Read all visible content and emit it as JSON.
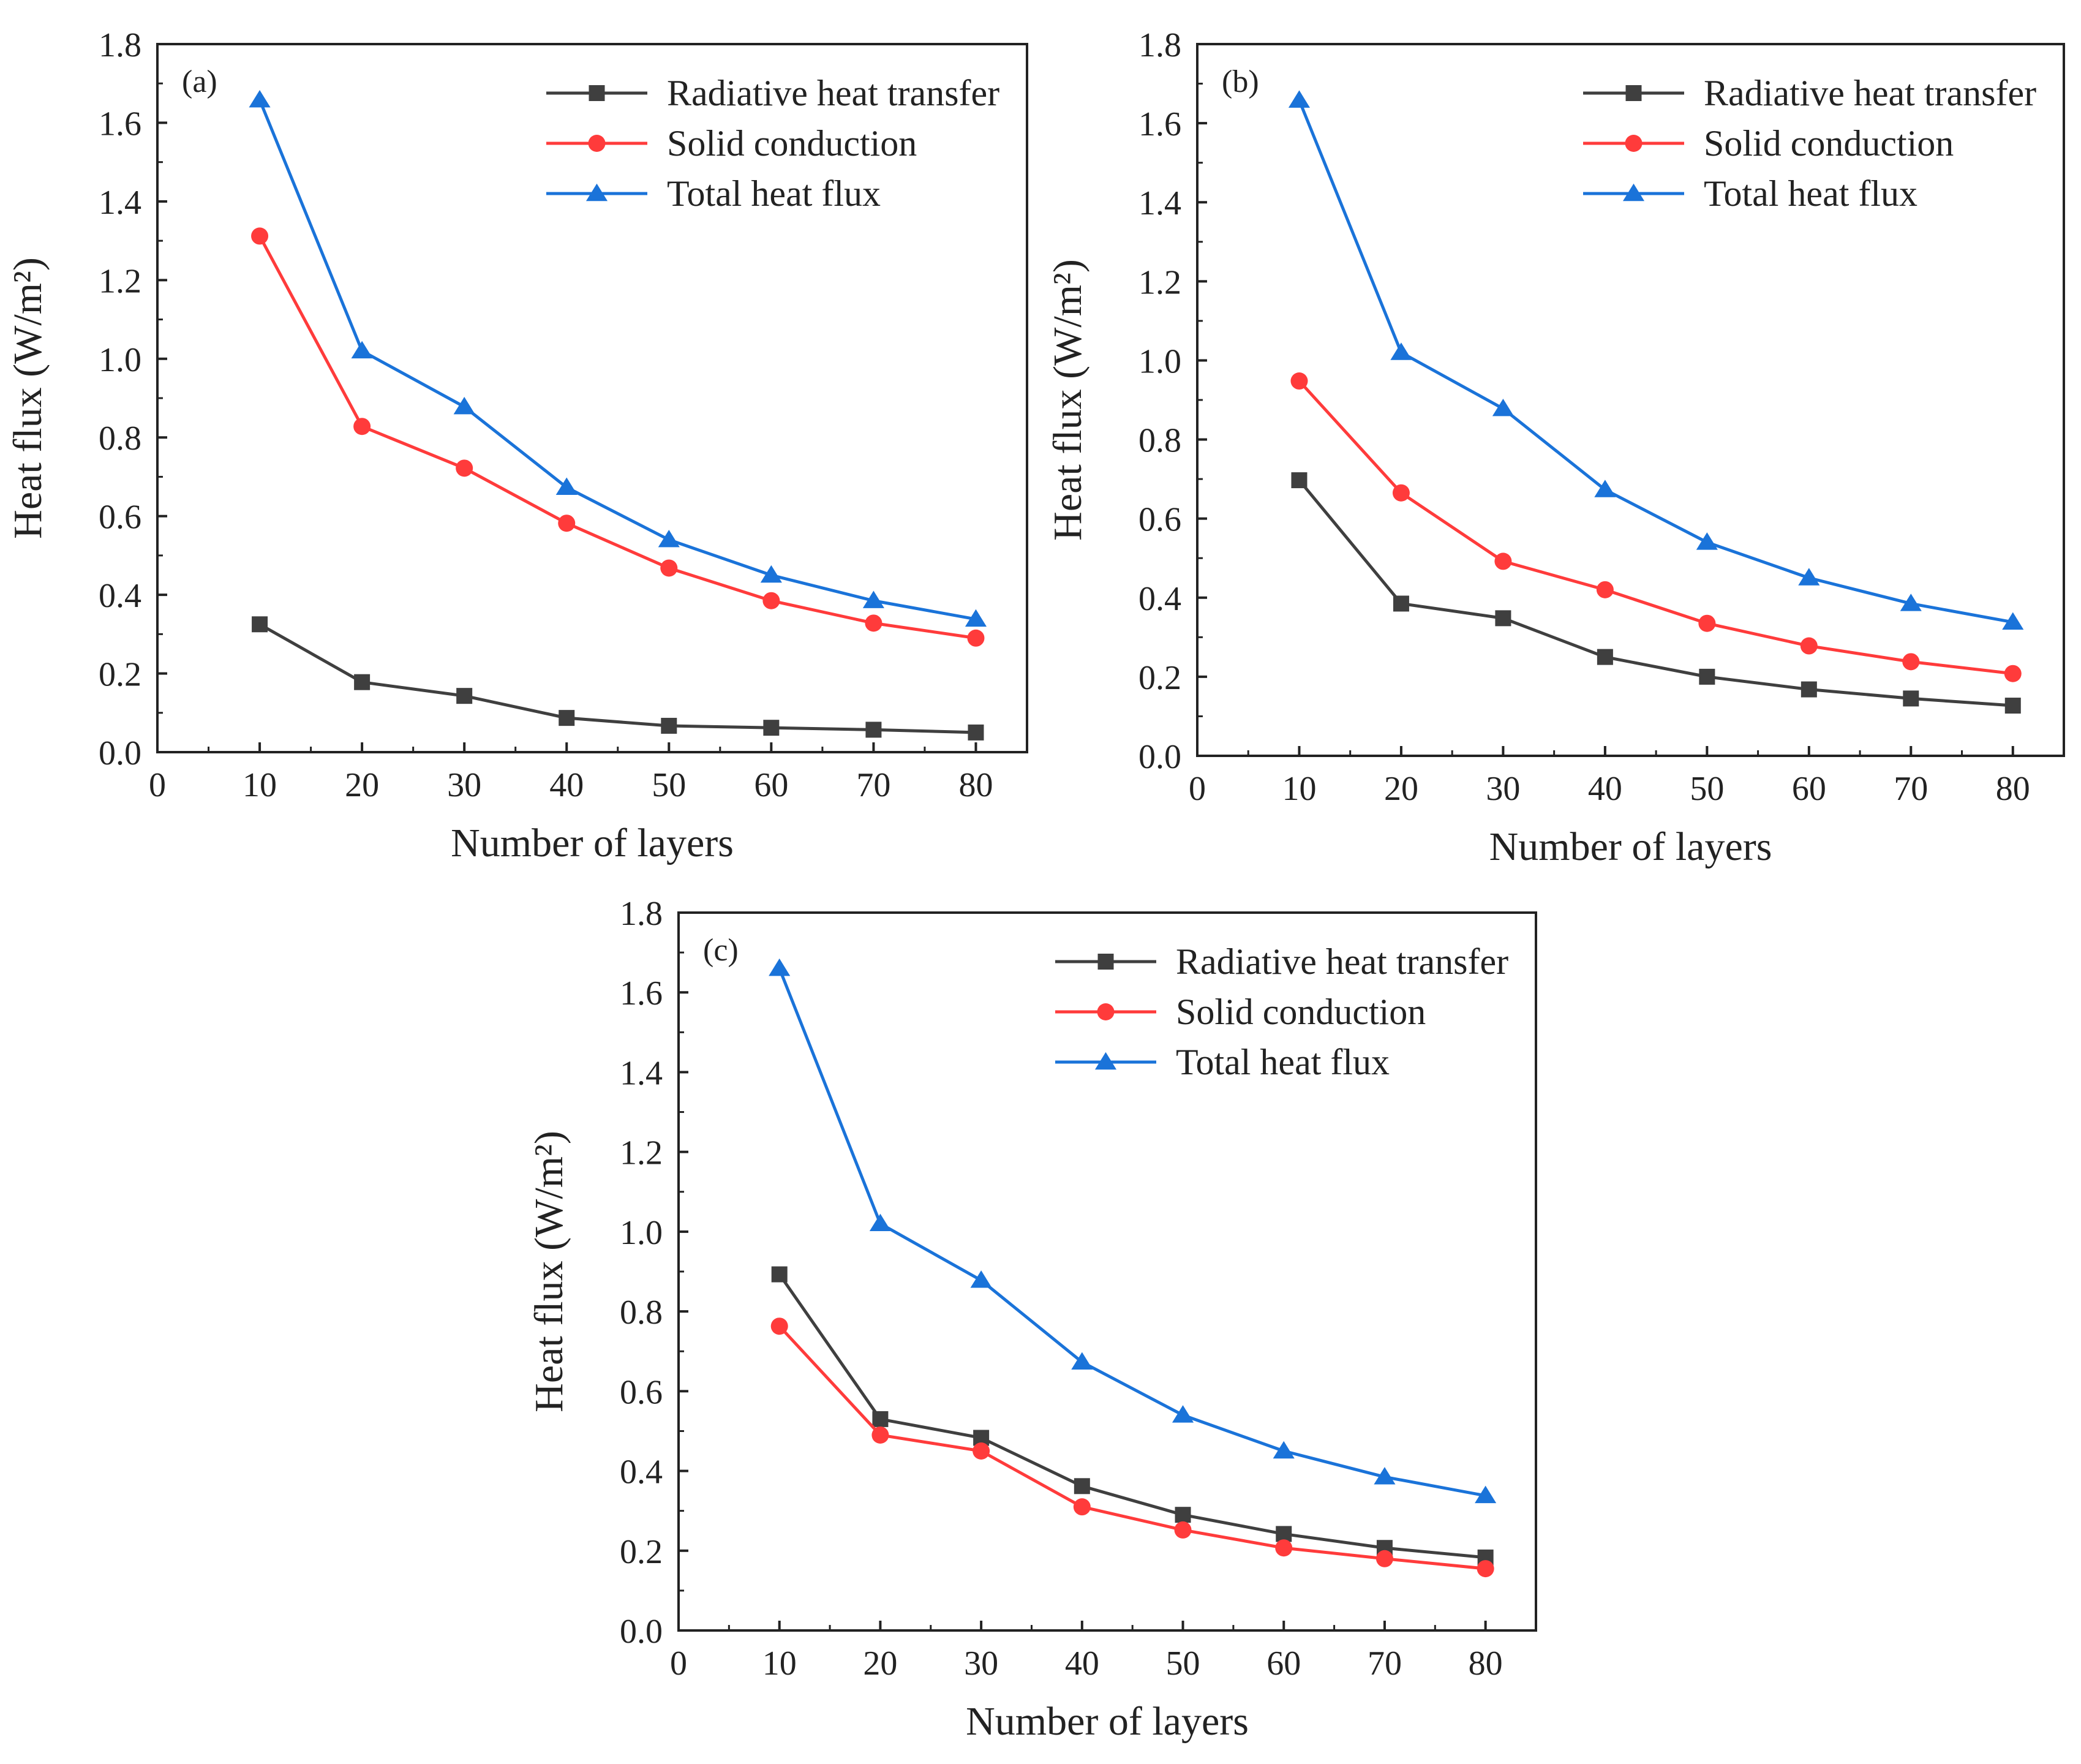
{
  "figure": {
    "panels": [
      "(a)",
      "(b)",
      "(c)"
    ]
  },
  "colors": {
    "radiative": "#3f3f3f",
    "solid": "#ff3b3b",
    "total": "#1a73d9",
    "axis": "#222222"
  },
  "chart_data": [
    {
      "type": "line",
      "panel_label": "(a)",
      "xlabel": "Number of layers",
      "ylabel": "Heat flux (W/m²)",
      "xlim": [
        0,
        85
      ],
      "ylim": [
        0,
        1.8
      ],
      "xticks": [
        0,
        10,
        20,
        30,
        40,
        50,
        60,
        70,
        80
      ],
      "yticks": [
        0.0,
        0.2,
        0.4,
        0.6,
        0.8,
        1.0,
        1.2,
        1.4,
        1.6,
        1.8
      ],
      "xtick_labels": [
        "0",
        "10",
        "20",
        "30",
        "40",
        "50",
        "60",
        "70",
        "80"
      ],
      "ytick_labels": [
        "0.0",
        "0.2",
        "0.4",
        "0.6",
        "0.8",
        "1.0",
        "1.2",
        "1.4",
        "1.6",
        "1.8"
      ],
      "grid": false,
      "legend_position": "top-right",
      "x": [
        10,
        20,
        30,
        40,
        50,
        60,
        70,
        80
      ],
      "series": [
        {
          "name": "Radiative heat transfer",
          "marker": "square",
          "color": "#3f3f3f",
          "values": [
            0.325,
            0.178,
            0.143,
            0.087,
            0.067,
            0.062,
            0.057,
            0.05
          ]
        },
        {
          "name": "Solid conduction",
          "marker": "circle",
          "color": "#ff3b3b",
          "values": [
            1.312,
            0.828,
            0.722,
            0.582,
            0.468,
            0.385,
            0.328,
            0.29
          ]
        },
        {
          "name": "Total heat flux",
          "marker": "triangle",
          "color": "#1a73d9",
          "values": [
            1.658,
            1.02,
            0.878,
            0.673,
            0.54,
            0.45,
            0.385,
            0.338
          ]
        }
      ]
    },
    {
      "type": "line",
      "panel_label": "(b)",
      "xlabel": "Number of layers",
      "ylabel": "Heat flux (W/m²)",
      "xlim": [
        0,
        85
      ],
      "ylim": [
        0,
        1.8
      ],
      "xticks": [
        0,
        10,
        20,
        30,
        40,
        50,
        60,
        70,
        80
      ],
      "yticks": [
        0.0,
        0.2,
        0.4,
        0.6,
        0.8,
        1.0,
        1.2,
        1.4,
        1.6,
        1.8
      ],
      "xtick_labels": [
        "0",
        "10",
        "20",
        "30",
        "40",
        "50",
        "60",
        "70",
        "80"
      ],
      "ytick_labels": [
        "0.0",
        "0.2",
        "0.4",
        "0.6",
        "0.8",
        "1.0",
        "1.2",
        "1.4",
        "1.6",
        "1.8"
      ],
      "grid": false,
      "legend_position": "top-right",
      "x": [
        10,
        20,
        30,
        40,
        50,
        60,
        70,
        80
      ],
      "series": [
        {
          "name": "Radiative heat transfer",
          "marker": "square",
          "color": "#3f3f3f",
          "values": [
            0.697,
            0.385,
            0.348,
            0.25,
            0.2,
            0.168,
            0.145,
            0.127
          ]
        },
        {
          "name": "Solid conduction",
          "marker": "circle",
          "color": "#ff3b3b",
          "values": [
            0.948,
            0.665,
            0.492,
            0.42,
            0.335,
            0.278,
            0.238,
            0.208
          ]
        },
        {
          "name": "Total heat flux",
          "marker": "triangle",
          "color": "#1a73d9",
          "values": [
            1.658,
            1.02,
            0.878,
            0.673,
            0.54,
            0.45,
            0.385,
            0.338
          ]
        }
      ]
    },
    {
      "type": "line",
      "panel_label": "(c)",
      "xlabel": "Number of layers",
      "ylabel": "Heat flux (W/m²)",
      "xlim": [
        0,
        85
      ],
      "ylim": [
        0,
        1.8
      ],
      "xticks": [
        0,
        10,
        20,
        30,
        40,
        50,
        60,
        70,
        80
      ],
      "yticks": [
        0.0,
        0.2,
        0.4,
        0.6,
        0.8,
        1.0,
        1.2,
        1.4,
        1.6,
        1.8
      ],
      "xtick_labels": [
        "0",
        "10",
        "20",
        "30",
        "40",
        "50",
        "60",
        "70",
        "80"
      ],
      "ytick_labels": [
        "0.0",
        "0.2",
        "0.4",
        "0.6",
        "0.8",
        "1.0",
        "1.2",
        "1.4",
        "1.6",
        "1.8"
      ],
      "grid": false,
      "legend_position": "top-right",
      "x": [
        10,
        20,
        30,
        40,
        50,
        60,
        70,
        80
      ],
      "series": [
        {
          "name": "Radiative heat transfer",
          "marker": "square",
          "color": "#3f3f3f",
          "values": [
            0.893,
            0.53,
            0.483,
            0.362,
            0.29,
            0.242,
            0.207,
            0.183
          ]
        },
        {
          "name": "Solid conduction",
          "marker": "circle",
          "color": "#ff3b3b",
          "values": [
            0.763,
            0.49,
            0.45,
            0.31,
            0.252,
            0.207,
            0.18,
            0.155
          ]
        },
        {
          "name": "Total heat flux",
          "marker": "triangle",
          "color": "#1a73d9",
          "values": [
            1.66,
            1.02,
            0.878,
            0.673,
            0.54,
            0.45,
            0.385,
            0.338
          ]
        }
      ]
    }
  ]
}
